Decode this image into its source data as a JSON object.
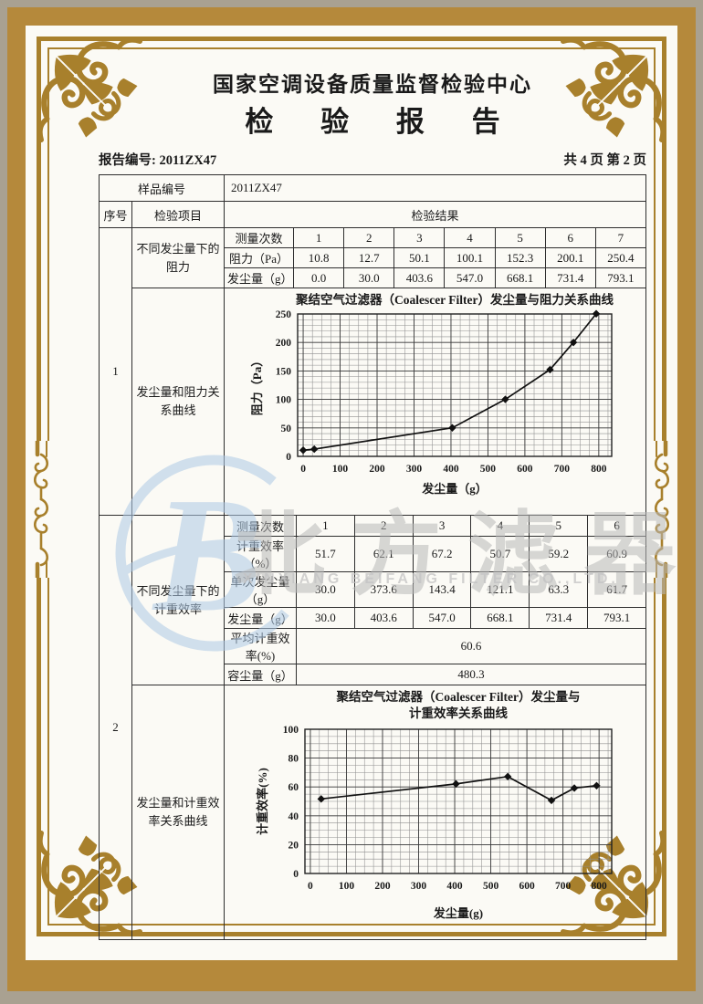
{
  "header": {
    "org": "国家空调设备质量监督检验中心",
    "title": "检  验  报  告",
    "report_no": "报告编号: 2011ZX47",
    "page_info": "共 4 页 第 2 页"
  },
  "table": {
    "sample_no_label": "样品编号",
    "sample_no_value": "2011ZX47",
    "col_seq": "序号",
    "col_item": "检验项目",
    "col_result": "检验结果",
    "section1": {
      "seq": "1",
      "item_rows": "不同发尘量下的阻力",
      "item_chart": "发尘量和阻力关系曲线",
      "row_labels": [
        "测量次数",
        "阻力（Pa）",
        "发尘量（g）"
      ],
      "rows": [
        [
          "1",
          "2",
          "3",
          "4",
          "5",
          "6",
          "7"
        ],
        [
          "10.8",
          "12.7",
          "50.1",
          "100.1",
          "152.3",
          "200.1",
          "250.4"
        ],
        [
          "0.0",
          "30.0",
          "403.6",
          "547.0",
          "668.1",
          "731.4",
          "793.1"
        ]
      ]
    },
    "section2": {
      "seq": "2",
      "item_rows": "不同发尘量下的计重效率",
      "item_chart": "发尘量和计重效率关系曲线",
      "row_labels": [
        "测量次数",
        "计重效率（%）",
        "单次发尘量（g）",
        "发尘量（g）"
      ],
      "rows": [
        [
          "1",
          "2",
          "3",
          "4",
          "5",
          "6"
        ],
        [
          "51.7",
          "62.1",
          "67.2",
          "50.7",
          "59.2",
          "60.9"
        ],
        [
          "30.0",
          "373.6",
          "143.4",
          "121.1",
          "63.3",
          "61.7"
        ],
        [
          "30.0",
          "403.6",
          "547.0",
          "668.1",
          "731.4",
          "793.1"
        ]
      ],
      "avg_label": "平均计重效率(%)",
      "avg_value": "60.6",
      "capacity_label": "容尘量（g）",
      "capacity_value": "480.3"
    }
  },
  "watermark": {
    "logo_letter": "B",
    "cn": "北方滤器",
    "en": "XINXIANG BEIFANG FILTER CO.,LTD."
  },
  "colors": {
    "frame_gold": "#a8802c",
    "band_gold": "#b5893b",
    "outer_gray": "#a9a191",
    "watermark_blue": "#aecae6",
    "watermark_gray": "#b9b9b9"
  },
  "chart_data": [
    {
      "id": "chart-resistance",
      "type": "line",
      "title": "聚结空气过滤器（Coalescer Filter）发尘量与阻力关系曲线",
      "title_lines": [
        "聚结空气过滤器（Coalescer Filter）发尘量与阻力关系曲线"
      ],
      "xlabel": "发尘量（g）",
      "ylabel": "阻力（Pa）",
      "x": [
        0,
        30,
        403.6,
        547,
        668.1,
        731.4,
        793.1
      ],
      "y": [
        10.8,
        12.7,
        50.1,
        100.1,
        152.3,
        200.1,
        250.4
      ],
      "xlim": [
        0,
        800
      ],
      "ylim": [
        0,
        250
      ],
      "xticks": [
        0,
        100,
        200,
        300,
        400,
        500,
        600,
        700,
        800
      ],
      "yticks": [
        0,
        50,
        100,
        150,
        200,
        250
      ],
      "grid": "on",
      "legend": "none",
      "marker": "diamond"
    },
    {
      "id": "chart-efficiency",
      "type": "line",
      "title": "聚结空气过滤器（Coalescer Filter）发尘量与计重效率关系曲线",
      "title_lines": [
        "聚结空气过滤器（Coalescer Filter）发尘量与",
        "计重效率关系曲线"
      ],
      "xlabel": "发尘量(g)",
      "ylabel": "计重效率(%)",
      "x": [
        30,
        403.6,
        547,
        668.1,
        731.4,
        793.1
      ],
      "y": [
        51.7,
        62.1,
        67.2,
        50.7,
        59.2,
        60.9
      ],
      "xlim": [
        0,
        800
      ],
      "ylim": [
        0,
        100
      ],
      "xticks": [
        0,
        100,
        200,
        300,
        400,
        500,
        600,
        700,
        800
      ],
      "yticks": [
        0,
        20,
        40,
        60,
        80,
        100
      ],
      "grid": "on",
      "legend": "none",
      "marker": "diamond"
    }
  ]
}
